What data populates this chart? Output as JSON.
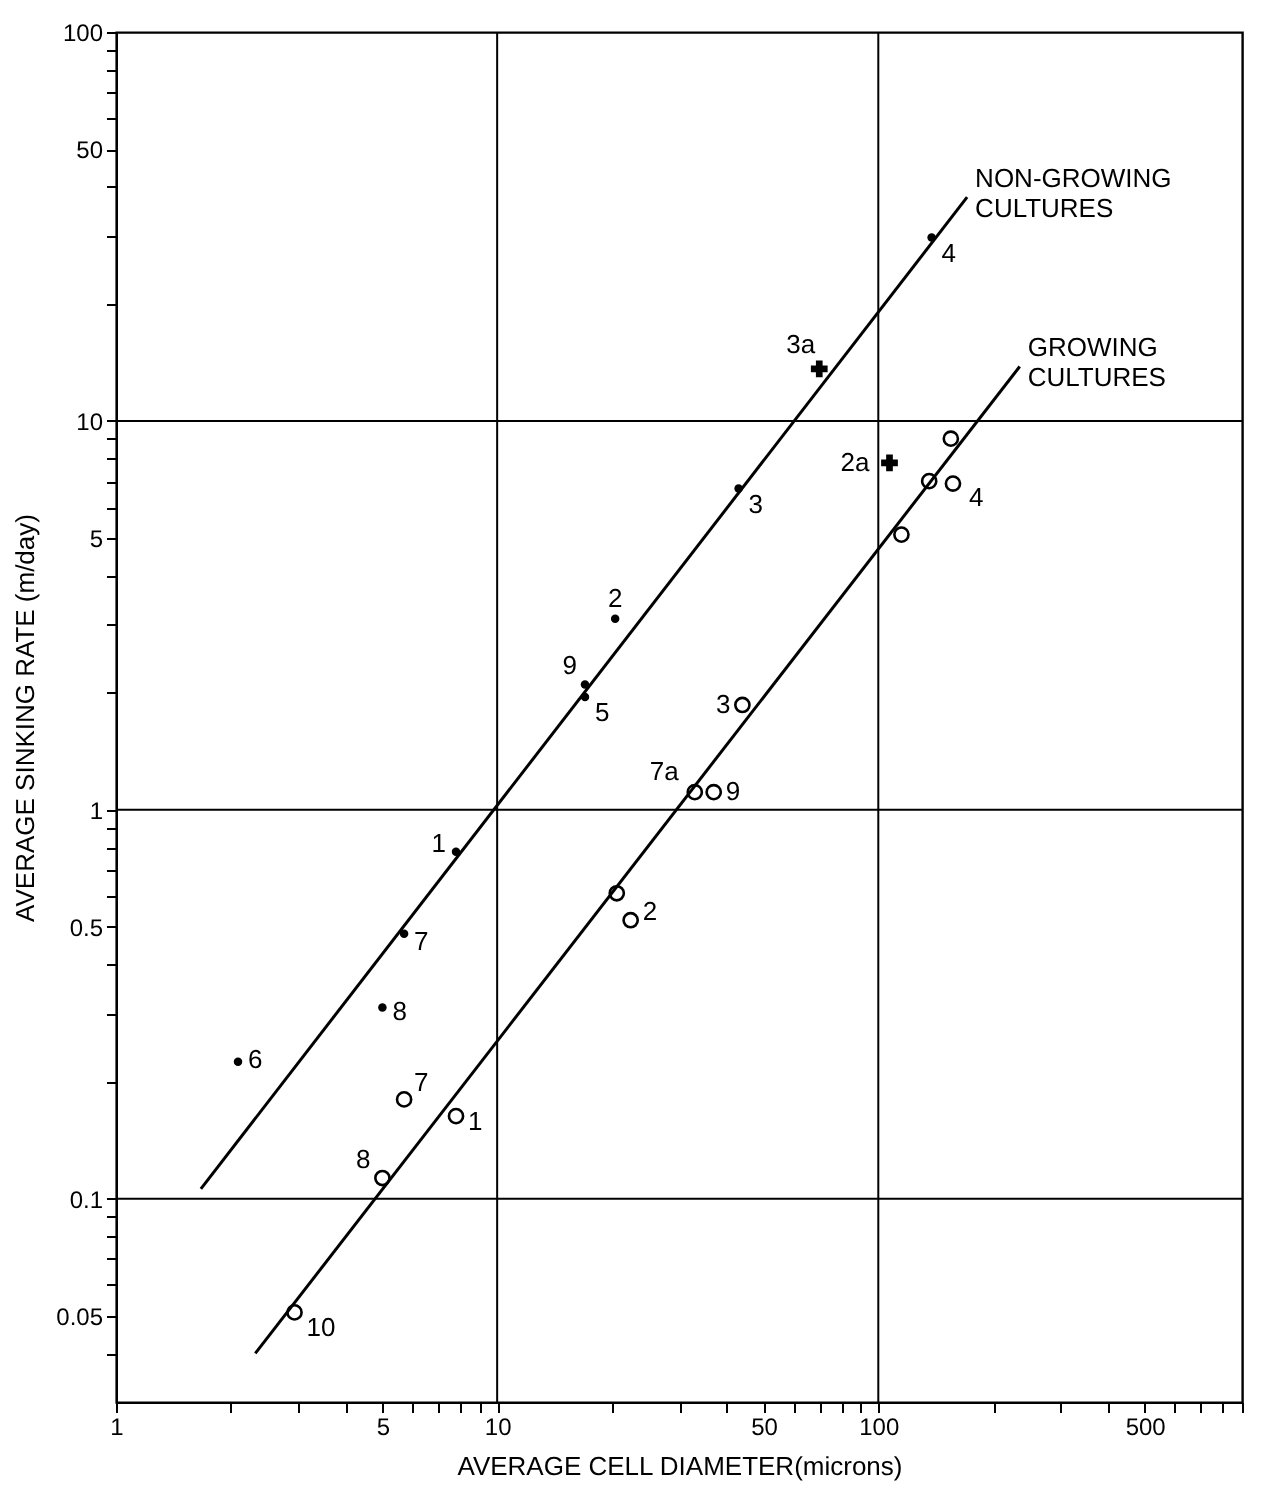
{
  "chart_data": {
    "type": "scatter",
    "xlabel": "AVERAGE CELL DIAMETER(microns)",
    "ylabel": "AVERAGE SINKING RATE (m/day)",
    "log": "xy",
    "grid": true,
    "xlim": [
      1,
      900
    ],
    "ylim": [
      0.03,
      100
    ],
    "xticks": [
      1,
      {
        "value": 2,
        "label": null
      },
      {
        "value": 3,
        "label": null
      },
      {
        "value": 4,
        "label": null
      },
      5,
      {
        "value": 6,
        "label": null
      },
      {
        "value": 7,
        "label": null
      },
      {
        "value": 8,
        "label": null
      },
      {
        "value": 9,
        "label": null
      },
      10,
      {
        "value": 20,
        "label": null
      },
      {
        "value": 30,
        "label": null
      },
      {
        "value": 40,
        "label": null
      },
      50,
      {
        "value": 60,
        "label": null
      },
      {
        "value": 70,
        "label": null
      },
      {
        "value": 80,
        "label": null
      },
      {
        "value": 90,
        "label": null
      },
      100,
      {
        "value": 200,
        "label": null
      },
      {
        "value": 300,
        "label": null
      },
      {
        "value": 400,
        "label": null
      },
      500,
      {
        "value": 600,
        "label": null
      },
      {
        "value": 700,
        "label": null
      },
      {
        "value": 800,
        "label": null
      },
      {
        "value": 900,
        "label": null
      }
    ],
    "yticks": [
      {
        "value": 0.04,
        "label": null
      },
      0.05,
      {
        "value": 0.06,
        "label": null
      },
      {
        "value": 0.07,
        "label": null
      },
      {
        "value": 0.08,
        "label": null
      },
      {
        "value": 0.09,
        "label": null
      },
      0.1,
      {
        "value": 0.2,
        "label": null
      },
      {
        "value": 0.3,
        "label": null
      },
      {
        "value": 0.4,
        "label": null
      },
      0.5,
      {
        "value": 0.6,
        "label": null
      },
      {
        "value": 0.7,
        "label": null
      },
      {
        "value": 0.8,
        "label": null
      },
      {
        "value": 0.9,
        "label": null
      },
      1,
      {
        "value": 2,
        "label": null
      },
      {
        "value": 3,
        "label": null
      },
      {
        "value": 4,
        "label": null
      },
      5,
      {
        "value": 6,
        "label": null
      },
      {
        "value": 7,
        "label": null
      },
      {
        "value": 8,
        "label": null
      },
      {
        "value": 9,
        "label": null
      },
      10,
      {
        "value": 20,
        "label": null
      },
      {
        "value": 30,
        "label": null
      },
      {
        "value": 40,
        "label": null
      },
      50,
      {
        "value": 60,
        "label": null
      },
      {
        "value": 70,
        "label": null
      },
      {
        "value": 80,
        "label": null
      },
      {
        "value": 90,
        "label": null
      },
      100
    ],
    "series": [
      {
        "type": "line",
        "name": "NON-GROWING CULTURES",
        "color": "#000000",
        "x": [
          1.67,
          171
        ],
        "values": [
          0.106,
          37.6
        ]
      },
      {
        "type": "line",
        "name": "GROWING CULTURES",
        "color": "#000000",
        "x": [
          2.32,
          235
        ],
        "values": [
          0.04,
          13.8
        ]
      },
      {
        "type": "scatter",
        "color": "#000000",
        "x": [
          138,
          43,
          20.4,
          17,
          17,
          7.8,
          5.7,
          5.0,
          2.09
        ],
        "values": [
          29.6,
          6.7,
          3.1,
          2.1,
          1.95,
          0.78,
          0.48,
          0.31,
          0.225
        ]
      },
      {
        "type": "scatter",
        "marker": "cross",
        "color": "#000000",
        "x": [
          70,
          107
        ],
        "values": [
          13.6,
          7.8
        ]
      },
      {
        "type": "scatter",
        "marker": "circle",
        "color": "#000000",
        "x": [
          155,
          136,
          157,
          115,
          44,
          33,
          37,
          20.6,
          22.4,
          5.7,
          7.8,
          5.0,
          2.94
        ],
        "values": [
          9.0,
          7.0,
          6.9,
          5.1,
          1.86,
          1.11,
          1.11,
          0.61,
          0.52,
          0.18,
          0.163,
          0.113,
          0.051
        ]
      }
    ],
    "annotations": [
      {
        "text": "4",
        "x": 138,
        "y": 29.6
      },
      {
        "text": "3a",
        "x": 70,
        "y": 13.6
      },
      {
        "text": "3",
        "x": 43,
        "y": 6.7
      },
      {
        "text": "2",
        "x": 20.4,
        "y": 3.1
      },
      {
        "text": "9",
        "x": 17,
        "y": 2.1
      },
      {
        "text": "5",
        "x": 17,
        "y": 1.95
      },
      {
        "text": "1",
        "x": 7.8,
        "y": 0.78
      },
      {
        "text": "7",
        "x": 5.7,
        "y": 0.48
      },
      {
        "text": "8",
        "x": 5.0,
        "y": 0.31
      },
      {
        "text": "6",
        "x": 2.09,
        "y": 0.225
      },
      {
        "text": "2a",
        "x": 107,
        "y": 7.8
      },
      {
        "text": "4",
        "x": 157,
        "y": 6.9
      },
      {
        "text": "3",
        "x": 44,
        "y": 1.86
      },
      {
        "text": "7a",
        "x": 33,
        "y": 1.11
      },
      {
        "text": "9",
        "x": 37,
        "y": 1.11
      },
      {
        "text": "2",
        "x": 22.4,
        "y": 0.52
      },
      {
        "text": "7",
        "x": 5.7,
        "y": 0.18
      },
      {
        "text": "1",
        "x": 7.8,
        "y": 0.163
      },
      {
        "text": "8",
        "x": 5.0,
        "y": 0.113
      },
      {
        "text": "10",
        "x": 2.94,
        "y": 0.051
      }
    ]
  }
}
